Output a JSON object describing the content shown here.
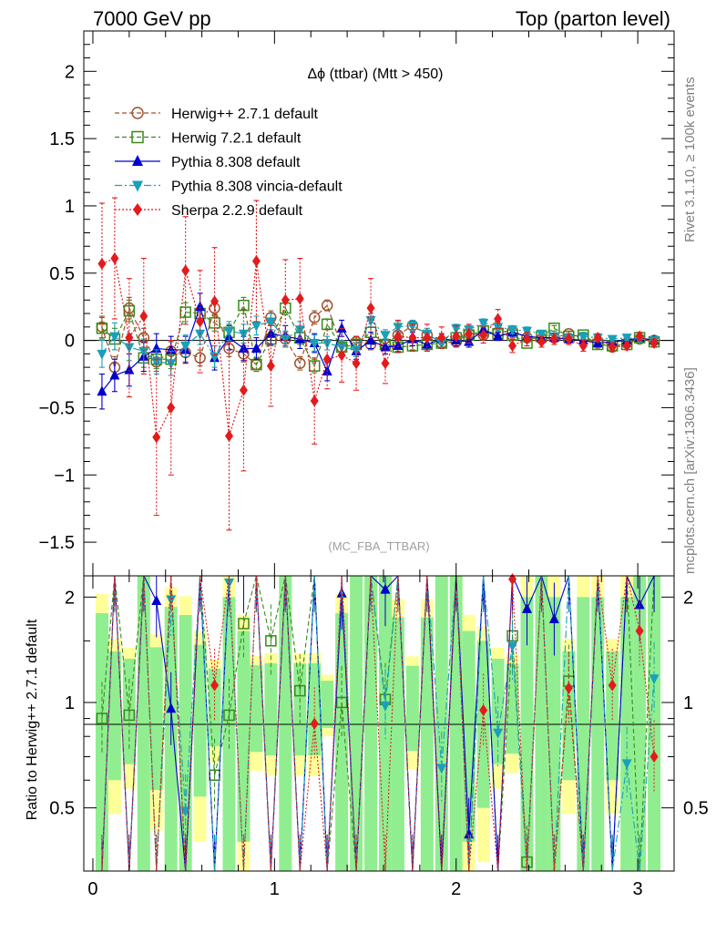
{
  "header": {
    "left": "7000 GeV pp",
    "right": "Top (parton level)"
  },
  "side_labels": {
    "rivet": "Rivet 3.1.10, ≥ 100k events",
    "mcplots": "mcplots.cern.ch [arXiv:1306.3436]"
  },
  "plot_title": "Δϕ (ttbar) (Mtt > 450)",
  "watermark": "(MC_FBA_TTBAR)",
  "ratio_ylabel": "Ratio to Herwig++ 2.7.1 default",
  "colors": {
    "herwig_pp": "#a0522d",
    "herwig7": "#3a8a1a",
    "pythia": "#0000cc",
    "vincia": "#1aa0b8",
    "sherpa": "#e41a1c",
    "band_green": "#90ee90",
    "band_yellow": "#ffff99"
  },
  "chart_data": [
    {
      "type": "line",
      "panel": "main",
      "title": "Δϕ (ttbar) (Mtt > 450)",
      "xlim": [
        -0.05,
        3.2
      ],
      "ylim": [
        -1.75,
        2.3
      ],
      "yticks": [
        -1.5,
        -1,
        -0.5,
        0,
        0.5,
        1,
        1.5,
        2
      ],
      "ytick_labels": [
        "−1.5",
        "−1",
        "−0.5",
        "0",
        "0.5",
        "1",
        "1.5",
        "2"
      ],
      "xticks": [
        0,
        1,
        2,
        3
      ],
      "xtick_labels": [
        "0",
        "1",
        "2",
        "3"
      ],
      "x": [
        0.05,
        0.12,
        0.2,
        0.28,
        0.35,
        0.43,
        0.51,
        0.59,
        0.67,
        0.75,
        0.83,
        0.9,
        0.98,
        1.06,
        1.14,
        1.22,
        1.29,
        1.37,
        1.45,
        1.53,
        1.61,
        1.68,
        1.76,
        1.84,
        1.92,
        2.0,
        2.07,
        2.15,
        2.23,
        2.31,
        2.39,
        2.47,
        2.54,
        2.62,
        2.7,
        2.78,
        2.86,
        2.94,
        3.01,
        3.09
      ],
      "legend_position": "top-left",
      "series": [
        {
          "name": "Herwig++ 2.7.1 default",
          "marker": "circle-open",
          "dash": "dashed",
          "values": [
            0.1,
            -0.2,
            0.24,
            0.02,
            -0.16,
            -0.08,
            -0.09,
            -0.13,
            0.24,
            -0.06,
            -0.1,
            -0.18,
            0.17,
            0.01,
            -0.17,
            0.17,
            0.26,
            -0.05,
            -0.01,
            -0.03,
            -0.03,
            0.04,
            0.11,
            0.04,
            -0.02,
            -0.01,
            0.05,
            0.04,
            0.06,
            0.07,
            0.02,
            0.01,
            0.02,
            0.05,
            0.02,
            -0.02,
            -0.05,
            -0.02,
            0.01,
            0.0
          ],
          "errors": [
            0.08,
            0.08,
            0.08,
            0.07,
            0.07,
            0.07,
            0.07,
            0.06,
            0.06,
            0.06,
            0.06,
            0.05,
            0.05,
            0.05,
            0.05,
            0.05,
            0.04,
            0.04,
            0.04,
            0.04,
            0.04,
            0.03,
            0.03,
            0.03,
            0.03,
            0.03,
            0.03,
            0.02,
            0.02,
            0.02,
            0.02,
            0.02,
            0.02,
            0.02,
            0.02,
            0.02,
            0.02,
            0.02,
            0.02,
            0.02
          ]
        },
        {
          "name": "Herwig 7.2.1 default",
          "marker": "square-open",
          "dash": "dashed",
          "values": [
            0.09,
            0.01,
            0.22,
            -0.13,
            -0.14,
            -0.14,
            0.21,
            0.2,
            0.13,
            0.06,
            0.26,
            -0.18,
            0.01,
            0.24,
            0.02,
            -0.19,
            0.12,
            -0.05,
            -0.03,
            0.06,
            -0.03,
            -0.05,
            -0.04,
            -0.03,
            -0.02,
            0.02,
            0.04,
            0.07,
            0.05,
            0.04,
            -0.02,
            0.03,
            0.09,
            0.03,
            0.04,
            -0.03,
            -0.04,
            -0.03,
            0.02,
            -0.01
          ],
          "errors": [
            0.08,
            0.08,
            0.08,
            0.07,
            0.07,
            0.07,
            0.07,
            0.06,
            0.06,
            0.06,
            0.06,
            0.05,
            0.05,
            0.05,
            0.05,
            0.05,
            0.04,
            0.04,
            0.04,
            0.04,
            0.04,
            0.03,
            0.03,
            0.03,
            0.03,
            0.03,
            0.03,
            0.02,
            0.02,
            0.02,
            0.02,
            0.02,
            0.02,
            0.02,
            0.02,
            0.02,
            0.02,
            0.02,
            0.02,
            0.02
          ]
        },
        {
          "name": "Pythia 8.308 default",
          "marker": "triangle-up",
          "dash": "solid",
          "values": [
            -0.38,
            -0.26,
            -0.22,
            -0.12,
            -0.06,
            -0.07,
            -0.07,
            0.25,
            -0.13,
            0.02,
            -0.06,
            -0.06,
            0.05,
            0.03,
            0.01,
            -0.02,
            -0.23,
            0.09,
            -0.08,
            0.0,
            -0.05,
            -0.04,
            0.01,
            -0.03,
            0.01,
            0.0,
            -0.01,
            0.08,
            0.03,
            0.06,
            0.03,
            0.02,
            0.02,
            0.01,
            0.0,
            -0.02,
            -0.01,
            0.0,
            0.02,
            0.0
          ],
          "errors": [
            0.13,
            0.12,
            0.12,
            0.11,
            0.11,
            0.1,
            0.1,
            0.1,
            0.09,
            0.09,
            0.09,
            0.08,
            0.08,
            0.08,
            0.07,
            0.07,
            0.07,
            0.06,
            0.06,
            0.06,
            0.05,
            0.05,
            0.05,
            0.05,
            0.04,
            0.04,
            0.04,
            0.04,
            0.03,
            0.03,
            0.03,
            0.03,
            0.03,
            0.03,
            0.03,
            0.02,
            0.02,
            0.02,
            0.02,
            0.02
          ]
        },
        {
          "name": "Pythia 8.308 vincia-default",
          "marker": "triangle-down",
          "dash": "dashdot",
          "values": [
            -0.1,
            0.03,
            -0.05,
            -0.08,
            -0.16,
            -0.17,
            -0.04,
            0.05,
            -0.12,
            0.07,
            0.05,
            0.11,
            0.14,
            0.01,
            0.08,
            -0.02,
            -0.02,
            -0.05,
            -0.07,
            0.15,
            0.04,
            0.1,
            0.11,
            0.05,
            -0.02,
            0.09,
            0.08,
            0.13,
            0.1,
            0.08,
            0.07,
            0.05,
            0.03,
            0.02,
            0.03,
            0.02,
            0.01,
            0.02,
            0.01,
            0.0
          ],
          "errors": [
            0.1,
            0.1,
            0.1,
            0.09,
            0.09,
            0.09,
            0.08,
            0.08,
            0.08,
            0.07,
            0.07,
            0.07,
            0.06,
            0.06,
            0.06,
            0.06,
            0.05,
            0.05,
            0.05,
            0.05,
            0.04,
            0.04,
            0.04,
            0.04,
            0.04,
            0.03,
            0.03,
            0.03,
            0.03,
            0.03,
            0.03,
            0.02,
            0.02,
            0.02,
            0.02,
            0.02,
            0.02,
            0.02,
            0.02,
            0.02
          ]
        },
        {
          "name": "Sherpa 2.2.9 default",
          "marker": "diamond",
          "dash": "dotted",
          "values": [
            0.57,
            0.61,
            0.02,
            0.18,
            -0.72,
            -0.5,
            0.52,
            0.14,
            0.29,
            -0.71,
            -0.37,
            0.59,
            -0.19,
            0.3,
            0.31,
            -0.45,
            -0.14,
            -0.11,
            -0.17,
            0.24,
            -0.17,
            0.03,
            0.02,
            0.02,
            0.02,
            0.03,
            0.05,
            0.04,
            0.16,
            -0.04,
            0.01,
            -0.01,
            0.01,
            0.01,
            -0.04,
            0.02,
            -0.05,
            -0.04,
            0.03,
            -0.02
          ],
          "errors": [
            0.45,
            0.45,
            0.44,
            0.43,
            0.58,
            0.5,
            0.4,
            0.38,
            0.4,
            0.7,
            0.6,
            0.45,
            0.3,
            0.3,
            0.3,
            0.32,
            0.22,
            0.2,
            0.2,
            0.22,
            0.15,
            0.12,
            0.1,
            0.1,
            0.08,
            0.08,
            0.07,
            0.06,
            0.07,
            0.05,
            0.05,
            0.04,
            0.04,
            0.04,
            0.04,
            0.03,
            0.03,
            0.03,
            0.03,
            0.03
          ]
        }
      ]
    },
    {
      "type": "line",
      "panel": "ratio",
      "ylabel": "Ratio to Herwig++ 2.7.1 default",
      "ylim": [
        0.33,
        2.3
      ],
      "yticks": [
        0.5,
        1,
        2
      ],
      "ytick_labels": [
        "0.5",
        "1",
        "2"
      ],
      "reference_line": 1,
      "series": [
        {
          "name": "Herwig 7.2.1 default",
          "values": [
            0.9,
            null,
            0.92,
            null,
            null,
            null,
            null,
            null,
            0.62,
            0.92,
            1.68,
            null,
            1.5,
            null,
            1.08,
            null,
            null,
            1.0,
            null,
            null,
            1.02,
            null,
            null,
            null,
            null,
            null,
            null,
            null,
            null,
            1.55,
            0.35,
            null,
            null,
            1.15,
            null,
            null,
            null,
            null,
            null,
            null
          ]
        },
        {
          "name": "Pythia 8.308 default",
          "values": [
            null,
            null,
            null,
            null,
            1.95,
            0.96,
            null,
            null,
            null,
            null,
            2.3,
            null,
            null,
            null,
            null,
            null,
            null,
            2.05,
            null,
            null,
            2.1,
            null,
            null,
            null,
            null,
            null,
            0.42,
            null,
            null,
            null,
            1.85,
            null,
            1.73,
            null,
            null,
            2.3,
            null,
            null,
            1.9,
            null
          ]
        },
        {
          "name": "Pythia 8.308 vincia-default",
          "values": [
            null,
            null,
            null,
            null,
            null,
            1.97,
            0.49,
            null,
            null,
            2.2,
            null,
            null,
            null,
            null,
            null,
            null,
            null,
            null,
            null,
            null,
            0.98,
            null,
            null,
            null,
            0.65,
            null,
            0.32,
            null,
            0.82,
            1.45,
            null,
            null,
            null,
            null,
            null,
            null,
            null,
            0.67,
            null,
            1.17
          ]
        },
        {
          "name": "Sherpa 2.2.9 default",
          "values": [
            null,
            null,
            null,
            null,
            null,
            null,
            null,
            null,
            1.12,
            null,
            null,
            null,
            null,
            null,
            null,
            0.87,
            null,
            null,
            null,
            null,
            null,
            null,
            null,
            null,
            null,
            null,
            null,
            0.95,
            null,
            2.25,
            null,
            null,
            null,
            1.1,
            null,
            null,
            1.12,
            null,
            1.6,
            0.7
          ]
        }
      ]
    }
  ]
}
